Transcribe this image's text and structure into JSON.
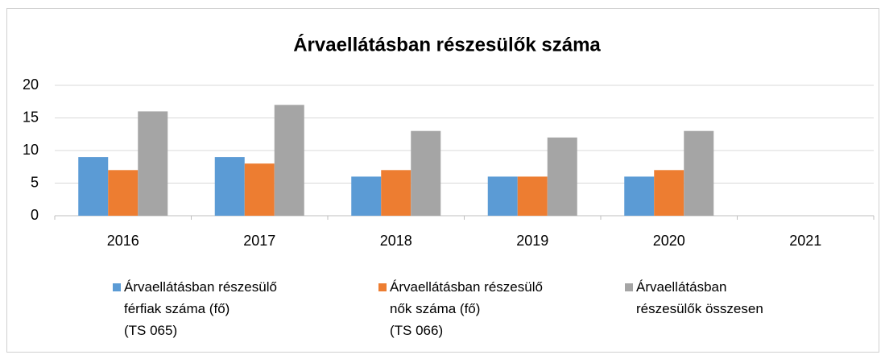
{
  "chart_data": {
    "type": "bar",
    "title": "Árvaellátásban részesülők száma",
    "categories": [
      "2016",
      "2017",
      "2018",
      "2019",
      "2020",
      "2021"
    ],
    "series": [
      {
        "name": "Árvaellátásban részesülő\nférfiak száma (fő)\n(TS 065)",
        "color": "#5b9bd5",
        "values": [
          9,
          9,
          6,
          6,
          6,
          null
        ]
      },
      {
        "name": "Árvaellátásban részesülő\nnők száma (fő)\n(TS 066)",
        "color": "#ed7d31",
        "values": [
          7,
          8,
          7,
          6,
          7,
          null
        ]
      },
      {
        "name": "Árvaellátásban\n részesülők összesen",
        "color": "#a5a5a5",
        "values": [
          16,
          17,
          13,
          12,
          13,
          null
        ]
      }
    ],
    "ylim": [
      0,
      20
    ],
    "yticks": [
      0,
      5,
      10,
      15,
      20
    ],
    "grid": true,
    "legend": "bottom"
  }
}
